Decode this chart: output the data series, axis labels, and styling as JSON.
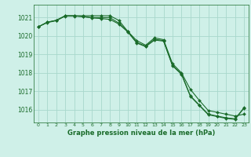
{
  "title": "Graphe pression niveau de la mer (hPa)",
  "bg_color": "#cff0e8",
  "grid_color": "#a8d8cc",
  "line_color": "#1a6b2a",
  "xlim": [
    -0.5,
    23.5
  ],
  "ylim": [
    1015.3,
    1021.7
  ],
  "yticks": [
    1016,
    1017,
    1018,
    1019,
    1020,
    1021
  ],
  "xticks": [
    0,
    1,
    2,
    3,
    4,
    5,
    6,
    7,
    8,
    9,
    10,
    11,
    12,
    13,
    14,
    15,
    16,
    17,
    18,
    19,
    20,
    21,
    22,
    23
  ],
  "series1": [
    1020.5,
    1020.75,
    1020.85,
    1021.1,
    1021.1,
    1021.1,
    1021.1,
    1021.1,
    1021.1,
    1020.85,
    1020.25,
    1019.75,
    1019.5,
    1019.9,
    1019.8,
    1018.5,
    1018.0,
    1017.1,
    1016.5,
    1015.95,
    1015.85,
    1015.75,
    1015.65,
    1015.75
  ],
  "series2": [
    1020.5,
    1020.75,
    1020.85,
    1021.1,
    1021.1,
    1021.05,
    1021.0,
    1021.0,
    1021.0,
    1020.7,
    1020.25,
    1019.65,
    1019.45,
    1019.82,
    1019.75,
    1018.4,
    1017.95,
    1016.75,
    1016.25,
    1015.75,
    1015.65,
    1015.55,
    1015.5,
    1016.1
  ],
  "series3": [
    1020.5,
    1020.73,
    1020.83,
    1021.08,
    1021.08,
    1021.06,
    1020.98,
    1020.95,
    1020.9,
    1020.65,
    1020.22,
    1019.62,
    1019.42,
    1019.78,
    1019.72,
    1018.38,
    1017.92,
    1016.72,
    1016.22,
    1015.72,
    1015.62,
    1015.52,
    1015.47,
    1016.08
  ]
}
